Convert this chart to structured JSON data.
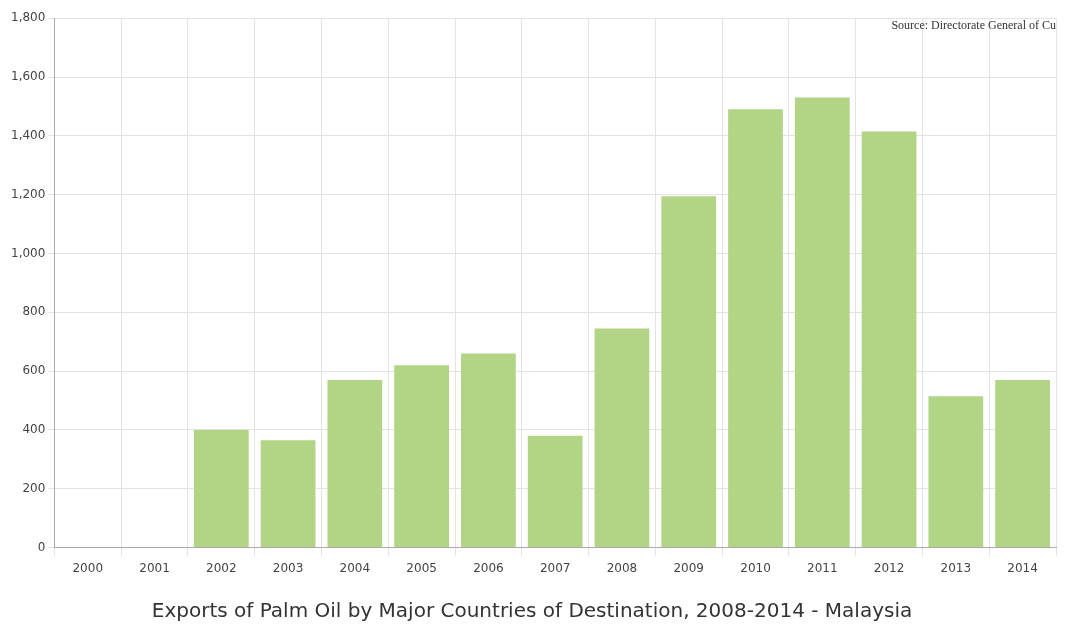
{
  "chart_data": {
    "type": "bar",
    "title": "Exports of Palm Oil by Major Countries of Destination, 2008-2014 - Malaysia",
    "categories": [
      "2000",
      "2001",
      "2002",
      "2003",
      "2004",
      "2005",
      "2006",
      "2007",
      "2008",
      "2009",
      "2010",
      "2011",
      "2012",
      "2013",
      "2014"
    ],
    "values": [
      null,
      null,
      400,
      365,
      570,
      620,
      660,
      380,
      745,
      1195,
      1490,
      1530,
      1415,
      515,
      570
    ],
    "color": "#b1d485",
    "ylim": [
      0,
      1800
    ],
    "yticks": [
      0,
      200,
      400,
      600,
      800,
      {
        "value": 1000,
        "label": "1,000"
      },
      {
        "value": 1200,
        "label": "1,200"
      },
      {
        "value": 1400,
        "label": "1,400"
      },
      {
        "value": 1600,
        "label": "1,600"
      },
      {
        "value": 1800,
        "label": "1,800"
      }
    ],
    "grid": true,
    "annotations": [
      "Source: Directorate General of Cu"
    ]
  }
}
